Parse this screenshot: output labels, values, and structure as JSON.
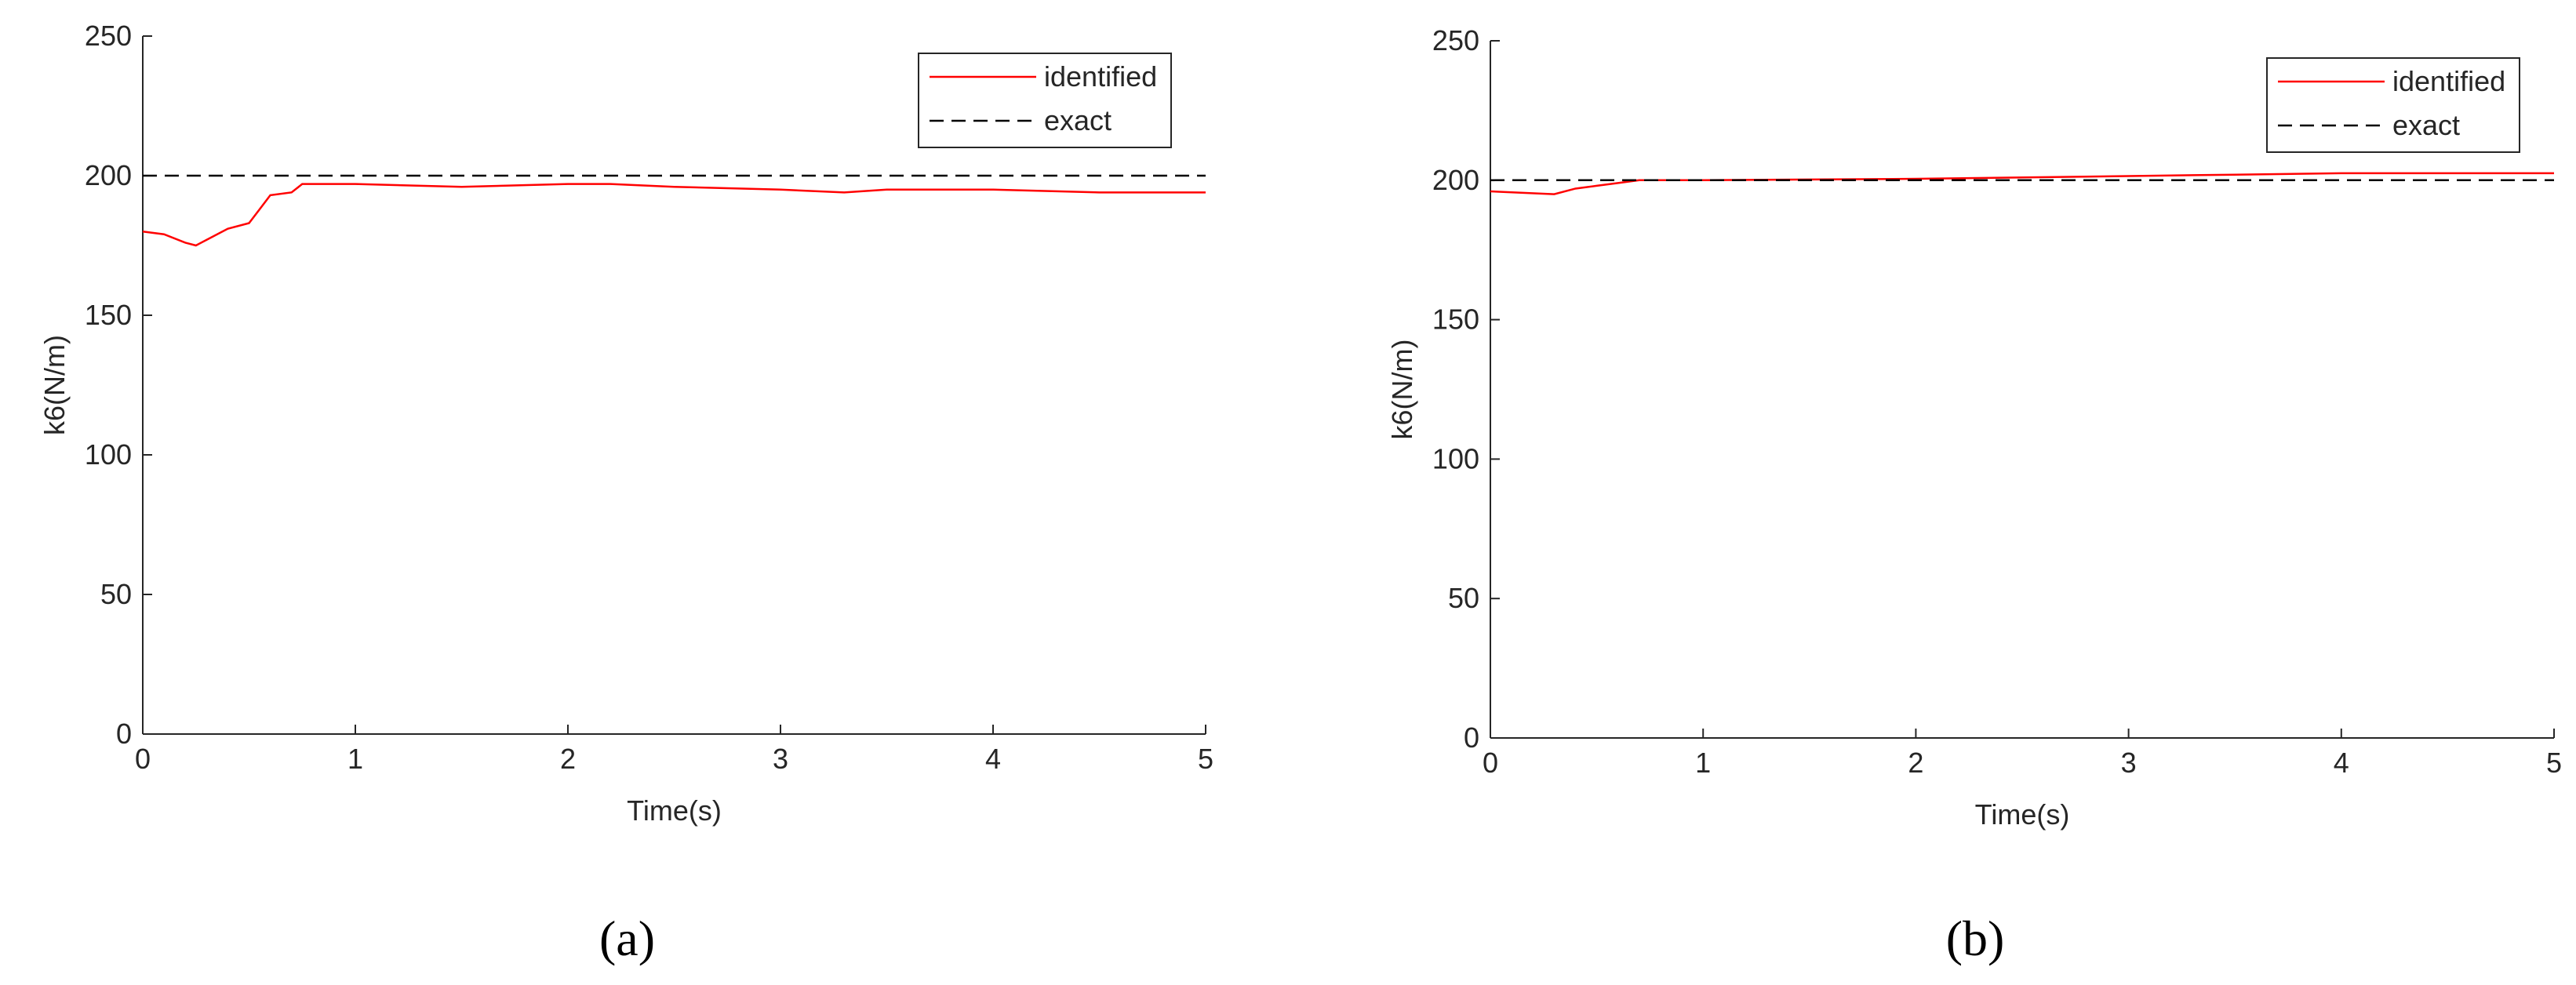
{
  "chart_data": [
    {
      "type": "line",
      "label": "(a)",
      "xlabel": "Time(s)",
      "ylabel": "k6(N/m)",
      "xlim": [
        0,
        5
      ],
      "xticks": [
        0,
        1,
        2,
        3,
        4,
        5
      ],
      "ylim": [
        0,
        250
      ],
      "yticks": [
        0,
        50,
        100,
        150,
        200,
        250
      ],
      "grid": false,
      "legend": "northeast",
      "series": [
        {
          "name": "identified",
          "color": "#ff0000",
          "linestyle": "solid",
          "x": [
            0,
            0.1,
            0.2,
            0.25,
            0.3,
            0.4,
            0.5,
            0.55,
            0.6,
            0.7,
            0.75,
            0.8,
            1,
            1.5,
            2,
            2.2,
            2.5,
            3,
            3.3,
            3.5,
            4,
            4.5,
            5
          ],
          "values": [
            180,
            179,
            176,
            175,
            177,
            181,
            183,
            188,
            193,
            194,
            197,
            197,
            197,
            196,
            197,
            197,
            196,
            195,
            194,
            195,
            195,
            194,
            194
          ]
        },
        {
          "name": "exact",
          "color": "#000000",
          "linestyle": "dashed",
          "x": [
            0,
            5
          ],
          "values": [
            200,
            200
          ]
        }
      ]
    },
    {
      "type": "line",
      "label": "(b)",
      "xlabel": "Time(s)",
      "ylabel": "k6(N/m)",
      "xlim": [
        0,
        5
      ],
      "xticks": [
        0,
        1,
        2,
        3,
        4,
        5
      ],
      "ylim": [
        0,
        250
      ],
      "yticks": [
        0,
        50,
        100,
        150,
        200,
        250
      ],
      "grid": false,
      "legend": "northeast",
      "series": [
        {
          "name": "identified",
          "color": "#ff0000",
          "linestyle": "solid",
          "x": [
            0,
            0.3,
            0.4,
            0.5,
            0.6,
            0.7,
            1,
            2,
            3,
            3.5,
            4,
            5
          ],
          "values": [
            196,
            195,
            197,
            198,
            199,
            200,
            200,
            200.5,
            201.5,
            202,
            202.5,
            202.5
          ]
        },
        {
          "name": "exact",
          "color": "#000000",
          "linestyle": "dashed",
          "x": [
            0,
            5
          ],
          "values": [
            200,
            200
          ]
        }
      ]
    }
  ]
}
